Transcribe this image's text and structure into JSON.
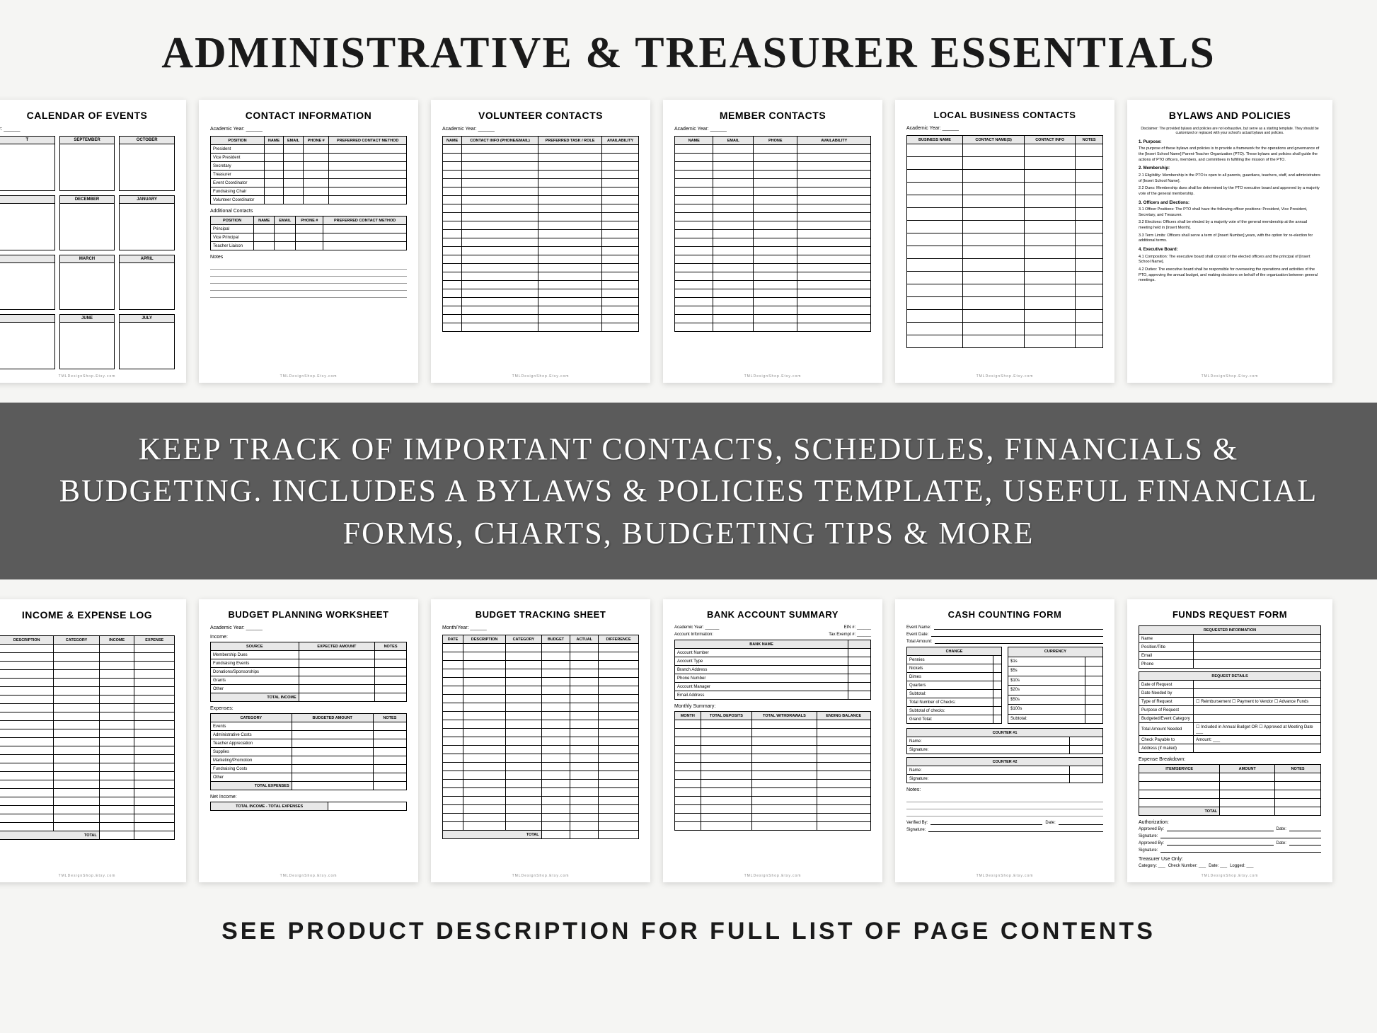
{
  "main_title": "ADMINISTRATIVE & TREASURER ESSENTIALS",
  "banner_text": "KEEP TRACK OF IMPORTANT CONTACTS, SCHEDULES, FINANCIALS & BUDGETING. INCLUDES A BYLAWS & POLICIES TEMPLATE, USEFUL FINANCIAL FORMS, CHARTS, BUDGETING TIPS & MORE",
  "bottom_text": "SEE PRODUCT DESCRIPTION FOR FULL LIST OF PAGE CONTENTS",
  "footer_small": "TMLDesignShop.Etsy.com",
  "academic_year_label": "Academic Year: ______",
  "month_year_label": "Month/Year: ______",
  "top_pages": {
    "calendar": {
      "title": "CALENDAR OF EVENTS",
      "months": [
        "T",
        "SEPTEMBER",
        "OCTOBER",
        "",
        "DECEMBER",
        "JANUARY",
        "",
        "MARCH",
        "APRIL",
        "",
        "JUNE",
        "JULY"
      ]
    },
    "contact_info": {
      "title": "CONTACT INFORMATION",
      "headers": [
        "POSITION",
        "NAME",
        "EMAIL",
        "PHONE #",
        "PREFERRED CONTACT METHOD"
      ],
      "positions": [
        "President",
        "Vice President",
        "Secretary",
        "Treasurer",
        "Event Coordinator",
        "Fundraising Chair",
        "Volunteer Coordinator"
      ],
      "additional_label": "Additional Contacts",
      "add_positions": [
        "Principal",
        "Vice Principal",
        "Teacher Liaison"
      ],
      "notes_label": "Notes"
    },
    "volunteer": {
      "title": "VOLUNTEER CONTACTS",
      "headers": [
        "NAME",
        "CONTACT INFO (PHONE/EMAIL)",
        "PREFERRED TASK / ROLE",
        "AVAILABILITY"
      ],
      "rows": 22
    },
    "member": {
      "title": "MEMBER CONTACTS",
      "headers": [
        "NAME",
        "EMAIL",
        "PHONE",
        "AVAILABILITY"
      ],
      "rows": 22
    },
    "business": {
      "title": "LOCAL BUSINESS CONTACTS",
      "headers": [
        "BUSINESS NAME",
        "CONTACT NAME(S)",
        "CONTACT INFO",
        "NOTES"
      ],
      "rows": 16
    },
    "bylaws": {
      "title": "BYLAWS AND POLICIES",
      "subtitle": "Disclaimer: The provided bylaws and policies are not exhaustive, but serve as a starting template. They should be customized or replaced with your school's actual bylaws and policies.",
      "sections": [
        {
          "hd": "1. Purpose:",
          "body": "The purpose of these bylaws and policies is to provide a framework for the operations and governance of the [Insert School Name] Parent-Teacher Organization (PTO). These bylaws and policies shall guide the actions of PTO officers, members, and committees in fulfilling the mission of the PTO."
        },
        {
          "hd": "2. Membership:",
          "body": ""
        },
        {
          "hd": "",
          "body": "2.1 Eligibility: Membership in the PTO is open to all parents, guardians, teachers, staff, and administrators of [Insert School Name]."
        },
        {
          "hd": "",
          "body": "2.2 Dues: Membership dues shall be determined by the PTO executive board and approved by a majority vote of the general membership."
        },
        {
          "hd": "3. Officers and Elections:",
          "body": ""
        },
        {
          "hd": "",
          "body": "3.1 Officer Positions: The PTO shall have the following officer positions: President, Vice President, Secretary, and Treasurer."
        },
        {
          "hd": "",
          "body": "3.2 Elections: Officers shall be elected by a majority vote of the general membership at the annual meeting held in [Insert Month]."
        },
        {
          "hd": "",
          "body": "3.3 Term Limits: Officers shall serve a term of [Insert Number] years, with the option for re-election for additional terms."
        },
        {
          "hd": "4. Executive Board:",
          "body": ""
        },
        {
          "hd": "",
          "body": "4.1 Composition: The executive board shall consist of the elected officers and the principal of [Insert School Name]."
        },
        {
          "hd": "",
          "body": "4.2 Duties: The executive board shall be responsible for overseeing the operations and activities of the PTO, approving the annual budget, and making decisions on behalf of the organization between general meetings."
        }
      ]
    }
  },
  "bottom_pages": {
    "income_log": {
      "title": "INCOME & EXPENSE LOG",
      "headers": [
        "DESCRIPTION",
        "CATEGORY",
        "INCOME",
        "EXPENSE"
      ],
      "rows": 22,
      "total_label": "TOTAL"
    },
    "budget_plan": {
      "title": "BUDGET PLANNING WORKSHEET",
      "income_label": "Income:",
      "income_headers": [
        "SOURCE",
        "EXPECTED AMOUNT",
        "NOTES"
      ],
      "income_rows": [
        "Membership Dues",
        "Fundraising Events",
        "Donations/Sponsorships",
        "Grants",
        "Other"
      ],
      "income_total": "TOTAL INCOME",
      "expenses_label": "Expenses:",
      "expense_headers": [
        "CATEGORY",
        "BUDGETED AMOUNT",
        "NOTES"
      ],
      "expense_rows": [
        "Events",
        "Administrative Costs",
        "Teacher Appreciation",
        "Supplies",
        "Marketing/Promotion",
        "Fundraising Costs",
        "Other"
      ],
      "expense_total": "TOTAL EXPENSES",
      "net_label": "Net Income:",
      "net_formula": "TOTAL INCOME - TOTAL EXPENSES"
    },
    "budget_track": {
      "title": "BUDGET TRACKING SHEET",
      "headers": [
        "DATE",
        "DESCRIPTION",
        "CATEGORY",
        "BUDGET",
        "ACTUAL",
        "DIFFERENCE"
      ],
      "rows": 22,
      "total_label": "TOTAL"
    },
    "bank": {
      "title": "BANK ACCOUNT SUMMARY",
      "top_labels": [
        "Academic Year: ______",
        "EIN #: ______"
      ],
      "acct_label": "Account Information:",
      "tax_label": "Tax Exempt #: ______",
      "acct_headers": [
        "BANK NAME",
        ""
      ],
      "acct_rows": [
        "Account Number",
        "Account Type",
        "Branch Address",
        "Phone Number",
        "Account Manager",
        "Email Address"
      ],
      "monthly_label": "Monthly Summary:",
      "monthly_headers": [
        "MONTH",
        "TOTAL DEPOSITS",
        "TOTAL WITHDRAWALS",
        "ENDING BALANCE"
      ],
      "monthly_rows": 13
    },
    "cash": {
      "title": "CASH COUNTING FORM",
      "event_lines": [
        "Event Name:",
        "Event Date:",
        "Total Amount:"
      ],
      "change_hdr": "CHANGE",
      "currency_hdr": "CURRENCY",
      "change_rows": [
        "Pennies",
        "Nickels",
        "Dimes",
        "Quarters",
        "Subtotal:",
        "Total Number of Checks:",
        "Subtotal of checks:",
        "Grand Total:"
      ],
      "currency_rows": [
        "$1s",
        "$5s",
        "$10s",
        "$20s",
        "$50s",
        "$100s",
        "Subtotal:"
      ],
      "counter1": "COUNTER #1",
      "counter2": "COUNTER #2",
      "sig_rows": [
        "Name:",
        "Signature:"
      ],
      "notes_label": "Notes:",
      "verify_row": [
        "Verified By:",
        "Date:"
      ],
      "sig_line": "Signature:"
    },
    "funds": {
      "title": "FUNDS REQUEST FORM",
      "req_info": "REQUESTER INFORMATION",
      "req_rows": [
        "Name",
        "Position/Title",
        "Email",
        "Phone"
      ],
      "req_details": "REQUEST DETAILS",
      "detail_rows": [
        [
          "Date of Request",
          ""
        ],
        [
          "Date Needed by",
          ""
        ],
        [
          "Type of Request",
          "☐ Reimbursement  ☐ Payment to Vendor  ☐ Advance Funds"
        ],
        [
          "Purpose of Request",
          ""
        ],
        [
          "Budgeted/Event Category",
          ""
        ],
        [
          "Total Amount Needed",
          "☐ Included in Annual Budget OR ☐ Approved at Meeting Date ___"
        ],
        [
          "Check Payable to",
          "Amount: ___"
        ],
        [
          "Address (if mailed)",
          ""
        ]
      ],
      "expense_label": "Expense Breakdown:",
      "expense_headers": [
        "ITEM/SERVICE",
        "AMOUNT",
        "NOTES"
      ],
      "expense_rows": 4,
      "expense_total": "TOTAL",
      "auth_label": "Authorization:",
      "auth_lines": [
        [
          "Approved By:",
          "Date:"
        ],
        [
          "Signature:",
          ""
        ],
        [
          "Approved By:",
          "Date:"
        ],
        [
          "Signature:",
          ""
        ]
      ],
      "treas_label": "Treasurer Use Only:",
      "treas_line": [
        "Category: ___",
        "Check Number: ___",
        "Date: ___",
        "Logged: ___"
      ]
    }
  }
}
